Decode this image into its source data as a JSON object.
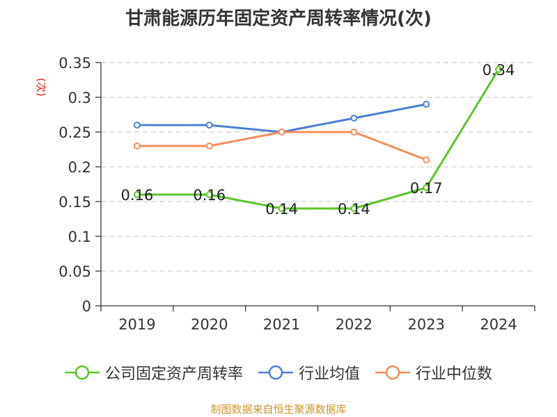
{
  "chart_data": {
    "type": "line",
    "title": "甘肃能源历年固定资产周转率情况(次)",
    "ylabel": "(次)",
    "xlabel": "",
    "categories": [
      "2019",
      "2020",
      "2021",
      "2022",
      "2023",
      "2024"
    ],
    "ylim": [
      0,
      0.35
    ],
    "yticks": [
      "0",
      "0.05",
      "0.1",
      "0.15",
      "0.2",
      "0.25",
      "0.3",
      "0.35"
    ],
    "grid": true,
    "legend_position": "bottom",
    "series": [
      {
        "name": "公司固定资产周转率",
        "color": "#5ac528",
        "values": [
          0.16,
          0.16,
          0.14,
          0.14,
          0.17,
          0.34
        ],
        "labels": [
          "0.16",
          "0.16",
          "0.14",
          "0.14",
          "0.17",
          "0.34"
        ]
      },
      {
        "name": "行业均值",
        "color": "#4b7fd8",
        "values": [
          0.26,
          0.26,
          0.25,
          0.27,
          0.29,
          null
        ]
      },
      {
        "name": "行业中位数",
        "color": "#f58c5a",
        "values": [
          0.23,
          0.23,
          0.25,
          0.25,
          0.21,
          null
        ]
      }
    ]
  },
  "footer": {
    "source": "制图数据来自恒生聚源数据库"
  }
}
